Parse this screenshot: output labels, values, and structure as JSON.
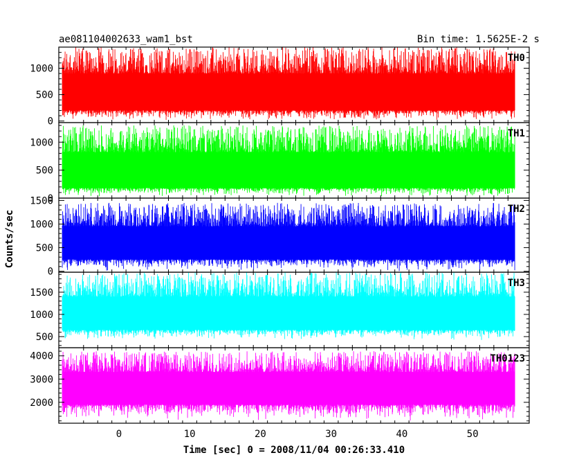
{
  "chart_data": {
    "type": "line",
    "title": "ae081104002633_wam1_bst",
    "subtitle": "Bin time: 1.5625E-2 s",
    "xlabel": "Time [sec] 0 = 2008/11/04 00:26:33.410",
    "ylabel": "Counts/sec",
    "xlim": [
      -8.5,
      58
    ],
    "x_ticks": [
      0,
      10,
      20,
      30,
      40,
      50
    ],
    "x_range_data": [
      -8,
      56
    ],
    "grid": false,
    "panels": [
      {
        "label": "TH0",
        "color": "#ff0000",
        "ylim": [
          -30,
          1400
        ],
        "y_ticks": [
          0,
          500,
          1000
        ],
        "band_low": 200,
        "band_high": 900,
        "spike_min": 0,
        "spike_max": 1400
      },
      {
        "label": "TH1",
        "color": "#00ff00",
        "ylim": [
          0,
          1350
        ],
        "y_ticks": [
          0,
          500,
          1000
        ],
        "band_low": 180,
        "band_high": 820,
        "spike_min": 20,
        "spike_max": 1300
      },
      {
        "label": "TH2",
        "color": "#0000ff",
        "ylim": [
          -20,
          1550
        ],
        "y_ticks": [
          0,
          500,
          1000,
          1500
        ],
        "band_low": 250,
        "band_high": 950,
        "spike_min": 0,
        "spike_max": 1450
      },
      {
        "label": "TH3",
        "color": "#00ffff",
        "ylim": [
          250,
          1950
        ],
        "y_ticks": [
          500,
          1000,
          1500
        ],
        "band_low": 650,
        "band_high": 1400,
        "spike_min": 420,
        "spike_max": 1950
      },
      {
        "label": "TH0123",
        "color": "#ff00ff",
        "ylim": [
          1100,
          4350
        ],
        "y_ticks": [
          2000,
          3000,
          4000
        ],
        "band_low": 1900,
        "band_high": 3300,
        "spike_min": 1200,
        "spike_max": 4200
      }
    ]
  }
}
